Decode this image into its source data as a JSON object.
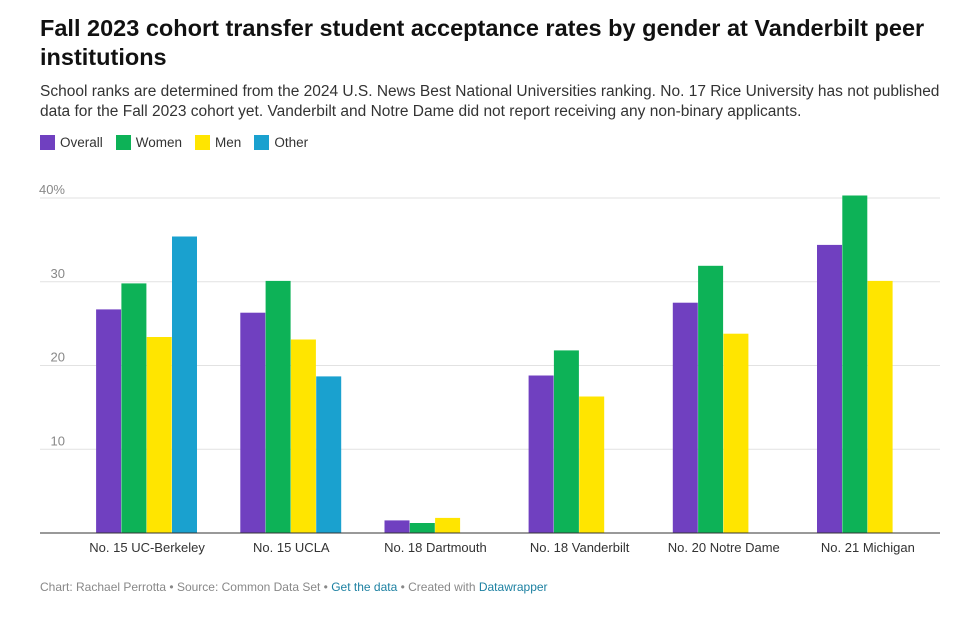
{
  "header": {
    "title": "Fall 2023 cohort transfer student acceptance rates by gender at Vanderbilt peer institutions",
    "subtitle": "School ranks are determined from the 2024 U.S. News Best National Universities ranking. No. 17 Rice University has not published data for the Fall 2023 cohort yet. Vanderbilt and Notre Dame did not report receiving any non-binary applicants."
  },
  "footer": {
    "credit": "Chart: Rachael Perrotta",
    "sep1": " • ",
    "source": "Source: Common Data Set",
    "sep2": " • ",
    "get_data": "Get the data",
    "sep3": " • ",
    "created_with": "Created with ",
    "tool": "Datawrapper"
  },
  "chart_data": {
    "type": "bar",
    "categories": [
      "No. 15 UC-Berkeley",
      "No. 15 UCLA",
      "No. 18 Dartmouth",
      "No. 18 Vanderbilt",
      "No. 20 Notre Dame",
      "No. 21 Michigan"
    ],
    "series": [
      {
        "name": "Overall",
        "color": "#7040c0",
        "values": [
          26.7,
          26.3,
          1.5,
          18.8,
          27.5,
          34.4
        ]
      },
      {
        "name": "Women",
        "color": "#0db257",
        "values": [
          29.8,
          30.1,
          1.2,
          21.8,
          31.9,
          40.3
        ]
      },
      {
        "name": "Men",
        "color": "#ffe500",
        "values": [
          23.4,
          23.1,
          1.8,
          16.3,
          23.8,
          30.1
        ]
      },
      {
        "name": "Other",
        "color": "#1aa1cf",
        "values": [
          35.4,
          18.7,
          null,
          null,
          null,
          null
        ]
      }
    ],
    "yticks": [
      10,
      20,
      30,
      40
    ],
    "ytick_labels": [
      "10",
      "20",
      "30",
      "40%"
    ],
    "ylim": [
      0,
      40
    ],
    "grid": true,
    "legend_position": "top-left"
  }
}
